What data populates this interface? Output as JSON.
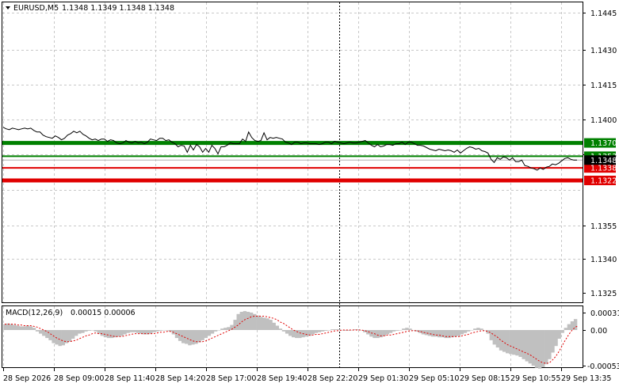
{
  "header": {
    "symbol": "EURUSD,M5",
    "ohlc": "1.1348 1.1349 1.1348 1.1348"
  },
  "macd_header": {
    "label": "MACD(12,26,9)",
    "values": "0.00015 0.00006"
  },
  "price_axis": {
    "ticks": [
      "1.1445",
      "1.1430",
      "1.1415",
      "1.1400",
      "1.1385",
      "1.1355",
      "1.1340",
      "1.1325"
    ]
  },
  "macd_axis": {
    "ticks": [
      "0.00031",
      "0.00",
      "-0.00053"
    ]
  },
  "time_axis": {
    "ticks": [
      "28 Sep 2026",
      "28 Sep 09:00",
      "28 Sep 11:40",
      "28 Sep 14:20",
      "28 Sep 17:00",
      "28 Sep 19:40",
      "28 Sep 22:20",
      "29 Sep 01:30",
      "29 Sep 05:10",
      "29 Sep 08:15",
      "29 Sep 10:55",
      "29 Sep 13:35"
    ]
  },
  "levels": [
    {
      "name": "resistance-1370",
      "price": 1.137,
      "label": "1.1370",
      "color": "#008000",
      "weight": "thick"
    },
    {
      "name": "resistance-1353",
      "price": 1.1353,
      "label": "1.1353",
      "color": "#008000",
      "weight": "thin"
    },
    {
      "name": "support-1338",
      "price": 1.1338,
      "label": "1.1338",
      "color": "#e00000",
      "weight": "thin"
    },
    {
      "name": "support-1322",
      "price": 1.1322,
      "label": "1.1322",
      "color": "#e00000",
      "weight": "thick"
    }
  ],
  "current_price": {
    "price": 1.1348,
    "label": "1.1348"
  },
  "colors": {
    "grid": "#c8c8c8",
    "price_line": "#000000",
    "histogram": "#c0c0c0",
    "signal": "#e00000",
    "current_tag_bg": "#000000",
    "crosshair": "#000000"
  },
  "chart_data": [
    {
      "type": "line",
      "title": "EURUSD,M5",
      "ylim": [
        1.132,
        1.1452
      ],
      "series": [
        {
          "name": "EURUSD,M5",
          "values": [
            1.139,
            1.1388,
            1.1387,
            1.1389,
            1.1388,
            1.1387,
            1.1388,
            1.1389,
            1.1388,
            1.1389,
            1.1386,
            1.1384,
            1.1384,
            1.138,
            1.1378,
            1.1377,
            1.1376,
            1.1379,
            1.1377,
            1.1374,
            1.1376,
            1.138,
            1.1382,
            1.1385,
            1.1383,
            1.1385,
            1.1381,
            1.1379,
            1.1376,
            1.1374,
            1.1375,
            1.1373,
            1.1375,
            1.1375,
            1.1372,
            1.1374,
            1.1373,
            1.137,
            1.1369,
            1.137,
            1.1373,
            1.1371,
            1.137,
            1.1372,
            1.137,
            1.1371,
            1.1369,
            1.1371,
            1.1375,
            1.1374,
            1.1373,
            1.1376,
            1.1376,
            1.1373,
            1.1374,
            1.1371,
            1.1369,
            1.1365,
            1.1367,
            1.1366,
            1.1358,
            1.1367,
            1.1361,
            1.1368,
            1.1365,
            1.1358,
            1.1363,
            1.1358,
            1.1367,
            1.1363,
            1.1356,
            1.1365,
            1.1365,
            1.1367,
            1.137,
            1.1369,
            1.1369,
            1.1369,
            1.1375,
            1.1372,
            1.1384,
            1.1377,
            1.1373,
            1.1372,
            1.1373,
            1.1383,
            1.1374,
            1.1377,
            1.1376,
            1.1377,
            1.1376,
            1.1375,
            1.1371,
            1.137,
            1.1368,
            1.1371,
            1.1371,
            1.1369,
            1.137,
            1.137,
            1.1369,
            1.1369,
            1.1369,
            1.1368,
            1.1369,
            1.1371,
            1.1371,
            1.1369,
            1.1372,
            1.1371,
            1.137,
            1.1369,
            1.137,
            1.1371,
            1.137,
            1.137,
            1.1371,
            1.1372,
            1.1373,
            1.137,
            1.1367,
            1.1365,
            1.1368,
            1.1365,
            1.1366,
            1.1368,
            1.1368,
            1.1367,
            1.1369,
            1.1369,
            1.1371,
            1.1368,
            1.1371,
            1.1371,
            1.1369,
            1.1367,
            1.1367,
            1.1366,
            1.1364,
            1.1362,
            1.1361,
            1.136,
            1.1362,
            1.1361,
            1.136,
            1.1361,
            1.136,
            1.1358,
            1.1361,
            1.1357,
            1.136,
            1.1363,
            1.1365,
            1.1364,
            1.1362,
            1.1363,
            1.136,
            1.1359,
            1.1357,
            1.1349,
            1.1345,
            1.1351,
            1.1349,
            1.1352,
            1.1351,
            1.1348,
            1.1351,
            1.1346,
            1.1346,
            1.1348,
            1.1341,
            1.134,
            1.1338,
            1.1337,
            1.1335,
            1.1338,
            1.1336,
            1.1339,
            1.134,
            1.1343,
            1.1342,
            1.1344,
            1.1347,
            1.135,
            1.1351,
            1.1349,
            1.1348,
            1.1348
          ]
        }
      ]
    },
    {
      "type": "bar",
      "title": "MACD(12,26,9)",
      "ylim": [
        -0.00053,
        0.00031
      ],
      "series": [
        {
          "name": "MACD histogram",
          "values": [
            8e-05,
            9e-05,
            8e-05,
            7e-05,
            6e-05,
            5e-05,
            5e-05,
            6e-05,
            5e-05,
            3e-05,
            -2e-05,
            -5e-05,
            -8e-05,
            -0.00011,
            -0.00014,
            -0.00018,
            -0.0002,
            -0.00022,
            -0.00021,
            -0.00018,
            -0.00016,
            -0.00012,
            -8e-05,
            -5e-05,
            -4e-05,
            -2e-05,
            -1e-05,
            0.0,
            -2e-05,
            -5e-05,
            -8e-05,
            -0.0001,
            -0.00011,
            -0.00011,
            -0.0001,
            -9e-05,
            -8e-05,
            -6e-05,
            -4e-05,
            -3e-05,
            -3e-05,
            -4e-05,
            -5e-05,
            -6e-05,
            -6e-05,
            -5e-05,
            -3e-05,
            -2e-05,
            -1e-05,
            0.0,
            0.0,
            -2e-05,
            -6e-05,
            -0.00011,
            -0.00015,
            -0.00018,
            -0.00019,
            -0.00021,
            -0.0002,
            -0.00019,
            -0.00017,
            -0.00014,
            -0.00011,
            -8e-05,
            -5e-05,
            -2e-05,
            0.0,
            2e-05,
            3e-05,
            4e-05,
            7e-05,
            0.00014,
            0.00022,
            0.00025,
            0.00026,
            0.00025,
            0.00024,
            0.00022,
            0.0002,
            0.00018,
            0.00017,
            0.00016,
            0.00014,
            0.0001,
            6e-05,
            2e-05,
            -2e-05,
            -5e-05,
            -8e-05,
            -0.0001,
            -0.00011,
            -0.00011,
            -0.0001,
            -9e-05,
            -8e-05,
            -6e-05,
            -4e-05,
            -3e-05,
            -2e-05,
            -1e-05,
            0.0,
            1e-05,
            1e-05,
            1e-05,
            0.0,
            -1e-05,
            -1e-05,
            0.0,
            1e-05,
            1e-05,
            0.0,
            -3e-05,
            -6e-05,
            -9e-05,
            -0.00011,
            -0.00011,
            -0.0001,
            -8e-05,
            -6e-05,
            -4e-05,
            -2e-05,
            -1e-05,
            0.0,
            2e-05,
            3e-05,
            2e-05,
            0.0,
            -2e-05,
            -4e-05,
            -6e-05,
            -7e-05,
            -8e-05,
            -9e-05,
            -9e-05,
            -0.0001,
            -0.0001,
            -0.00011,
            -0.00011,
            -0.0001,
            -9e-05,
            -8e-05,
            -6e-05,
            -4e-05,
            -2e-05,
            0.0,
            2e-05,
            3e-05,
            2e-05,
            0.0,
            -5e-05,
            -0.00014,
            -0.0002,
            -0.00024,
            -0.00028,
            -0.0003,
            -0.00032,
            -0.00033,
            -0.00034,
            -0.00035,
            -0.00037,
            -0.0004,
            -0.00043,
            -0.00046,
            -0.00049,
            -0.00052,
            -0.00053,
            -0.00051,
            -0.00047,
            -0.0004,
            -0.00031,
            -0.00022,
            -0.00012,
            -4e-05,
            3e-05,
            8e-05,
            0.00012,
            0.00015
          ]
        },
        {
          "name": "Signal",
          "values": [
            8e-05,
            8e-05,
            8e-05,
            8e-05,
            7e-05,
            7e-05,
            6e-05,
            6e-05,
            6e-05,
            5e-05,
            4e-05,
            2e-05,
            0.0,
            -2e-05,
            -5e-05,
            -8e-05,
            -0.00011,
            -0.00013,
            -0.00015,
            -0.00016,
            -0.00016,
            -0.00015,
            -0.00014,
            -0.00012,
            -0.0001,
            -8e-05,
            -7e-05,
            -5e-05,
            -4e-05,
            -5e-05,
            -5e-05,
            -6e-05,
            -7e-05,
            -8e-05,
            -9e-05,
            -9e-05,
            -9e-05,
            -8e-05,
            -7e-05,
            -6e-05,
            -5e-05,
            -5e-05,
            -5e-05,
            -5e-05,
            -5e-05,
            -5e-05,
            -5e-05,
            -4e-05,
            -3e-05,
            -3e-05,
            -2e-05,
            -2e-05,
            -3e-05,
            -5e-05,
            -7e-05,
            -9e-05,
            -0.00011,
            -0.00013,
            -0.00015,
            -0.00016,
            -0.00016,
            -0.00016,
            -0.00015,
            -0.00013,
            -0.00011,
            -9e-05,
            -7e-05,
            -5e-05,
            -3e-05,
            -1e-05,
            1e-05,
            4e-05,
            7e-05,
            0.00011,
            0.00014,
            0.00016,
            0.00018,
            0.00019,
            0.00019,
            0.00019,
            0.00019,
            0.00018,
            0.00017,
            0.00016,
            0.00014,
            0.00011,
            9e-05,
            6e-05,
            3e-05,
            0.0,
            -2e-05,
            -4e-05,
            -5e-05,
            -6e-05,
            -7e-05,
            -7e-05,
            -6e-05,
            -6e-05,
            -5e-05,
            -4e-05,
            -3e-05,
            -2e-05,
            -1e-05,
            -1e-05,
            0.0,
            0.0,
            0.0,
            0.0,
            0.0,
            0.0,
            0.0,
            -1e-05,
            -2e-05,
            -4e-05,
            -5e-05,
            -7e-05,
            -8e-05,
            -8e-05,
            -7e-05,
            -7e-05,
            -6e-05,
            -5e-05,
            -4e-05,
            -3e-05,
            -2e-05,
            -1e-05,
            -1e-05,
            -1e-05,
            -2e-05,
            -3e-05,
            -4e-05,
            -5e-05,
            -6e-05,
            -7e-05,
            -7e-05,
            -8e-05,
            -9e-05,
            -9e-05,
            -9e-05,
            -9e-05,
            -9e-05,
            -8e-05,
            -7e-05,
            -6e-05,
            -4e-05,
            -3e-05,
            -2e-05,
            -1e-05,
            -1e-05,
            -2e-05,
            -4e-05,
            -7e-05,
            -0.0001,
            -0.00014,
            -0.00017,
            -0.0002,
            -0.00022,
            -0.00024,
            -0.00026,
            -0.00028,
            -0.0003,
            -0.00032,
            -0.00034,
            -0.00037,
            -0.0004,
            -0.00043,
            -0.00045,
            -0.00046,
            -0.00045,
            -0.00041,
            -0.00036,
            -0.00029,
            -0.00021,
            -0.00013,
            -6e-05,
            0.0,
            4e-05,
            6e-05
          ]
        }
      ]
    }
  ]
}
